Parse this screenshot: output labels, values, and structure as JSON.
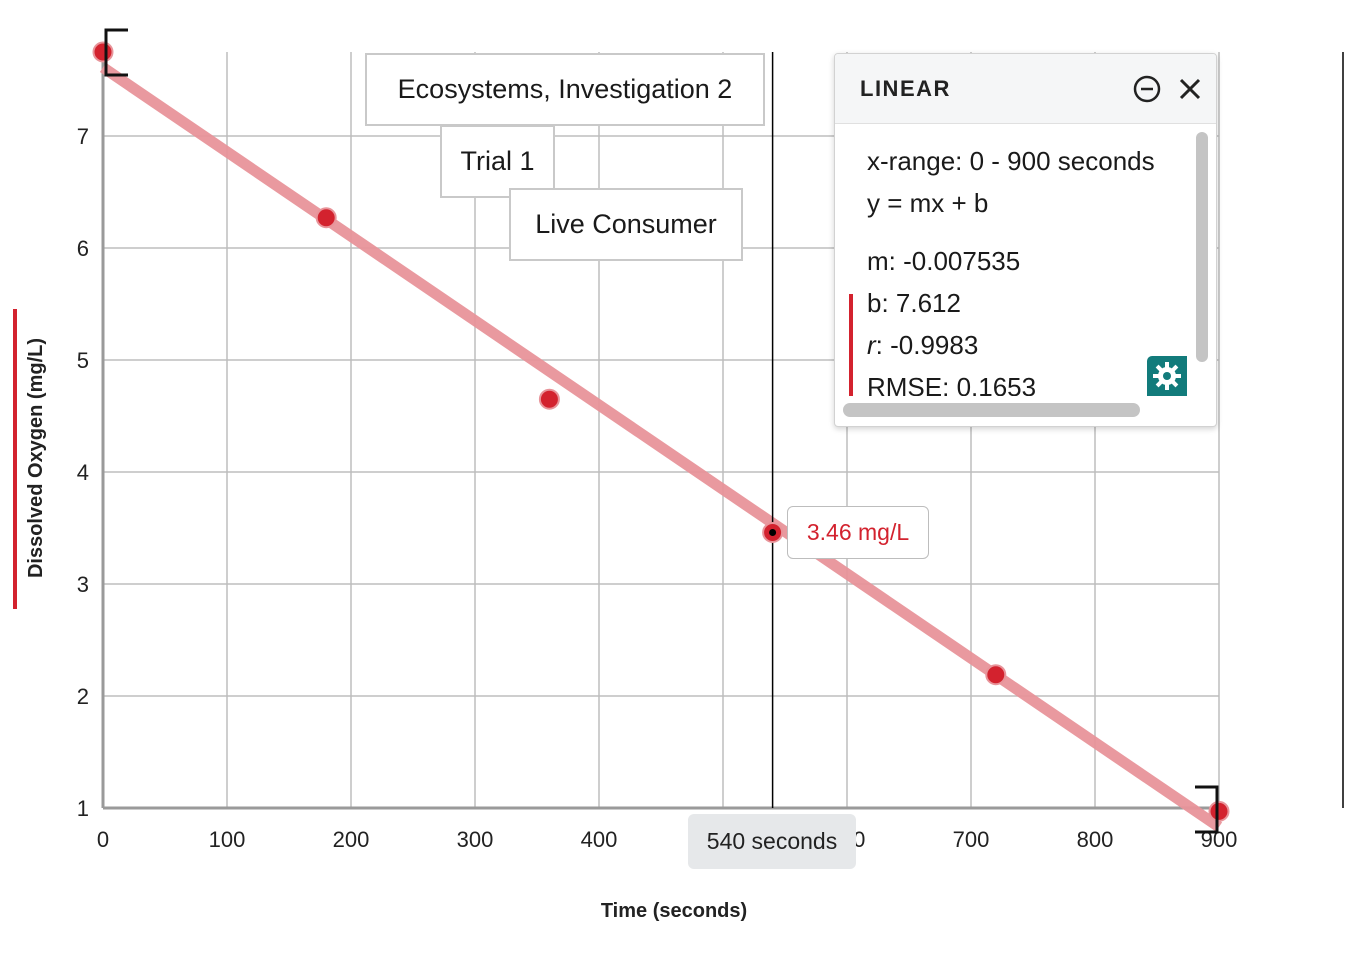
{
  "chart_data": {
    "type": "scatter",
    "xlabel": "Time (seconds)",
    "ylabel": "Dissolved Oxygen   (mg/L)",
    "xlim": [
      0,
      900
    ],
    "ylim": [
      1,
      7.5
    ],
    "xticks": [
      0,
      100,
      200,
      300,
      400,
      500,
      600,
      700,
      800,
      900
    ],
    "yticks": [
      1,
      2,
      3,
      4,
      5,
      6,
      7
    ],
    "grid": true,
    "series": [
      {
        "points": [
          {
            "x": 0,
            "y": 7.75
          },
          {
            "x": 180,
            "y": 6.27
          },
          {
            "x": 360,
            "y": 4.65
          },
          {
            "x": 540,
            "y": 3.46
          },
          {
            "x": 720,
            "y": 2.19
          },
          {
            "x": 900,
            "y": 0.97
          }
        ],
        "color": "#d3222e"
      }
    ],
    "fit_line": {
      "m": -0.007535,
      "b": 7.612,
      "x_range": [
        0,
        900
      ],
      "color": "#e8949a"
    },
    "cursor": {
      "x": 540,
      "y": 3.46,
      "x_label": "540 seconds",
      "y_label": "3.46 mg/L"
    },
    "callouts": [
      {
        "text": "Ecosystems, Investigation 2"
      },
      {
        "text": "Trial 1"
      },
      {
        "text": "Live Consumer"
      }
    ]
  },
  "panel": {
    "title": "LINEAR",
    "x_range": "x-range: 0 - 900 seconds",
    "equation": "y = mx + b",
    "m": "m: -0.007535",
    "b": "b: 7.612",
    "r_symbol": "r",
    "r_value": ": -0.9983",
    "rmse": "RMSE: 0.1653",
    "icons": [
      "minus-circle-icon",
      "close-icon",
      "gear-icon"
    ],
    "accent": "#127b7b"
  }
}
